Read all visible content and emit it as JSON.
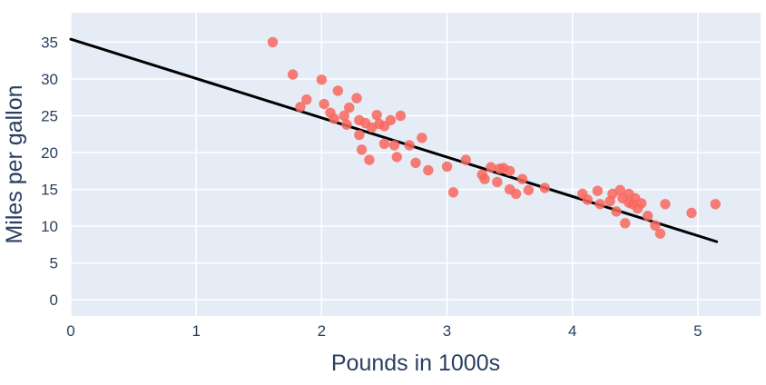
{
  "chart_data": {
    "type": "scatter",
    "title": "",
    "xlabel": "Pounds in 1000s",
    "ylabel": "Miles per gallon",
    "x_ticks": [
      0,
      1,
      2,
      3,
      4,
      5
    ],
    "y_ticks": [
      0,
      5,
      10,
      15,
      20,
      25,
      30,
      35
    ],
    "xlim": [
      0,
      5.5
    ],
    "ylim": [
      -2.2,
      39
    ],
    "grid": true,
    "legend_position": "none",
    "marker_size_px": 11.4,
    "points": [
      [
        1.61,
        35.0
      ],
      [
        1.77,
        30.6
      ],
      [
        1.83,
        26.2
      ],
      [
        1.88,
        27.2
      ],
      [
        2.0,
        29.9
      ],
      [
        2.02,
        26.6
      ],
      [
        2.07,
        25.4
      ],
      [
        2.1,
        24.6
      ],
      [
        2.13,
        28.4
      ],
      [
        2.18,
        25.0
      ],
      [
        2.2,
        23.8
      ],
      [
        2.22,
        26.1
      ],
      [
        2.28,
        27.4
      ],
      [
        2.3,
        24.4
      ],
      [
        2.3,
        22.4
      ],
      [
        2.32,
        20.4
      ],
      [
        2.35,
        24.0
      ],
      [
        2.38,
        19.0
      ],
      [
        2.4,
        23.4
      ],
      [
        2.44,
        25.1
      ],
      [
        2.46,
        23.9
      ],
      [
        2.5,
        23.6
      ],
      [
        2.5,
        21.2
      ],
      [
        2.55,
        24.4
      ],
      [
        2.58,
        21.0
      ],
      [
        2.6,
        19.4
      ],
      [
        2.63,
        25.0
      ],
      [
        2.7,
        21.0
      ],
      [
        2.75,
        18.6
      ],
      [
        2.8,
        22.0
      ],
      [
        2.85,
        17.6
      ],
      [
        3.0,
        18.1
      ],
      [
        3.05,
        14.6
      ],
      [
        3.15,
        19.0
      ],
      [
        3.28,
        17.0
      ],
      [
        3.3,
        16.4
      ],
      [
        3.35,
        18.0
      ],
      [
        3.4,
        16.0
      ],
      [
        3.42,
        17.8
      ],
      [
        3.45,
        17.9
      ],
      [
        3.5,
        17.5
      ],
      [
        3.5,
        15.0
      ],
      [
        3.55,
        14.4
      ],
      [
        3.6,
        16.4
      ],
      [
        3.65,
        14.9
      ],
      [
        3.78,
        15.2
      ],
      [
        4.08,
        14.4
      ],
      [
        4.12,
        13.6
      ],
      [
        4.2,
        14.8
      ],
      [
        4.22,
        13.0
      ],
      [
        4.3,
        13.4
      ],
      [
        4.32,
        14.4
      ],
      [
        4.35,
        12.0
      ],
      [
        4.38,
        14.9
      ],
      [
        4.4,
        13.8
      ],
      [
        4.42,
        10.4
      ],
      [
        4.45,
        14.4
      ],
      [
        4.45,
        13.2
      ],
      [
        4.48,
        13.0
      ],
      [
        4.5,
        13.8
      ],
      [
        4.52,
        12.4
      ],
      [
        4.55,
        13.1
      ],
      [
        4.6,
        11.4
      ],
      [
        4.66,
        10.1
      ],
      [
        4.7,
        9.0
      ],
      [
        4.74,
        13.0
      ],
      [
        4.95,
        11.8
      ],
      [
        5.14,
        13.0
      ]
    ],
    "trend_line": {
      "x": [
        0,
        5.15
      ],
      "y": [
        35.4,
        7.9
      ]
    },
    "colors": {
      "outer_background": "#ffffff",
      "plot_background": "#e5ecf6",
      "grid": "#ffffff",
      "marker": "#f8675d",
      "trend": "#000000",
      "text": "#2a3f5f"
    }
  }
}
